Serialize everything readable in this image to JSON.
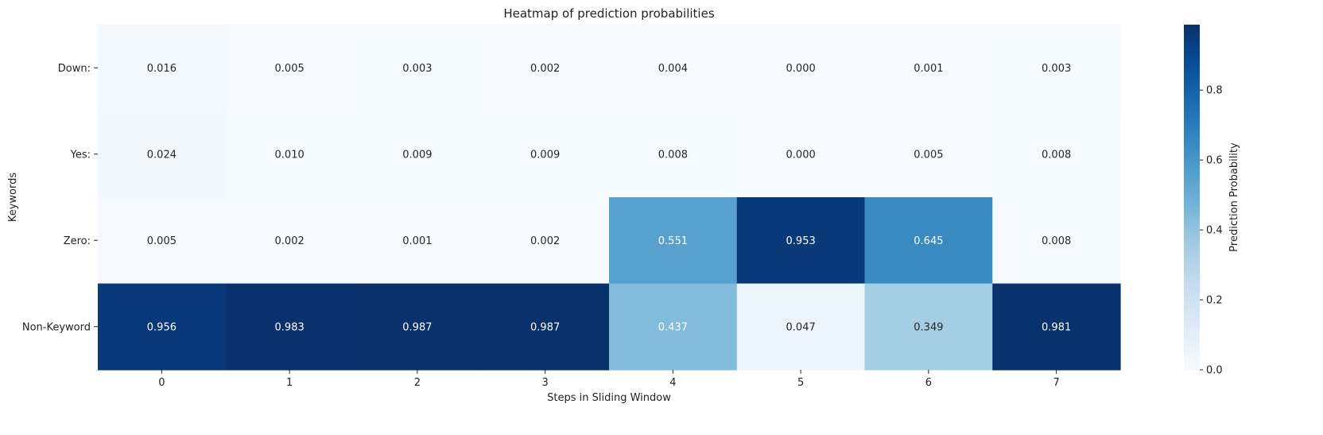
{
  "chart_data": {
    "type": "heatmap",
    "title": "Heatmap of prediction probabilities",
    "xlabel": "Steps in Sliding Window",
    "ylabel": "Keywords",
    "x_categories": [
      "0",
      "1",
      "2",
      "3",
      "4",
      "5",
      "6",
      "7"
    ],
    "y_categories": [
      "Down:",
      "Yes:",
      "Zero:",
      "Non-Keyword"
    ],
    "values": [
      [
        0.016,
        0.005,
        0.003,
        0.002,
        0.004,
        0.0,
        0.001,
        0.003
      ],
      [
        0.024,
        0.01,
        0.009,
        0.009,
        0.008,
        0.0,
        0.005,
        0.008
      ],
      [
        0.005,
        0.002,
        0.001,
        0.002,
        0.551,
        0.953,
        0.645,
        0.008
      ],
      [
        0.956,
        0.983,
        0.987,
        0.987,
        0.437,
        0.047,
        0.349,
        0.981
      ]
    ],
    "value_labels": [
      [
        "0.016",
        "0.005",
        "0.003",
        "0.002",
        "0.004",
        "0.000",
        "0.001",
        "0.003"
      ],
      [
        "0.024",
        "0.010",
        "0.009",
        "0.009",
        "0.008",
        "0.000",
        "0.005",
        "0.008"
      ],
      [
        "0.005",
        "0.002",
        "0.001",
        "0.002",
        "0.551",
        "0.953",
        "0.645",
        "0.008"
      ],
      [
        "0.956",
        "0.983",
        "0.987",
        "0.987",
        "0.437",
        "0.047",
        "0.349",
        "0.981"
      ]
    ],
    "colormap": "Blues",
    "vmin": 0.0,
    "vmax": 0.987,
    "colorbar": {
      "label": "Prediction Probability",
      "ticks": [
        0.0,
        0.2,
        0.4,
        0.6,
        0.8
      ],
      "tick_labels": [
        "0.0",
        "0.2",
        "0.4",
        "0.6",
        "0.8"
      ],
      "placement": "right"
    },
    "grid": false
  }
}
